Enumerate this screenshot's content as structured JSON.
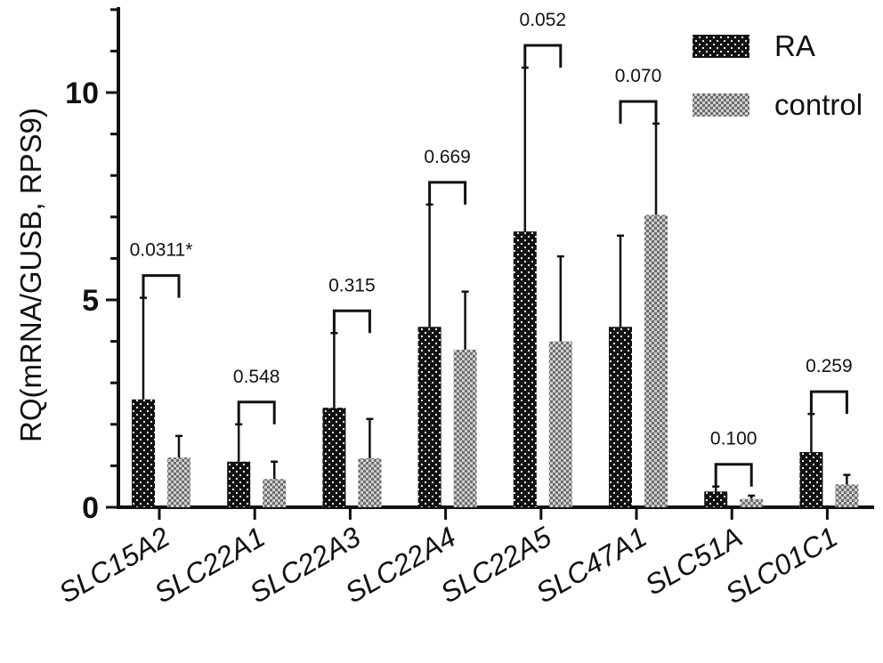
{
  "chart_data": {
    "type": "bar",
    "ylabel": "RQ(mRNA/GUSB, RPS9)",
    "ylim": [
      0,
      12
    ],
    "yticks": [
      0,
      5,
      10
    ],
    "categories": [
      "SLC15A2",
      "SLC22A1",
      "SLC22A3",
      "SLC22A4",
      "SLC22A5",
      "SLC47A1",
      "SLC51A",
      "SLC01C1"
    ],
    "series": [
      {
        "name": "RA",
        "values": [
          2.6,
          1.1,
          2.4,
          4.35,
          6.65,
          4.35,
          0.38,
          1.33
        ],
        "errors": [
          2.45,
          0.9,
          1.8,
          2.95,
          3.95,
          2.2,
          0.12,
          0.92
        ],
        "color": "#111111"
      },
      {
        "name": "control",
        "values": [
          1.2,
          0.68,
          1.18,
          3.8,
          4.0,
          7.05,
          0.2,
          0.55
        ],
        "errors": [
          0.52,
          0.42,
          0.95,
          1.4,
          2.05,
          2.2,
          0.08,
          0.23
        ],
        "color": "#8a8a8a"
      }
    ],
    "annotations": [
      "0.0311*",
      "0.548",
      "0.315",
      "0.669",
      "0.052",
      "0.070",
      "0.100",
      "0.259"
    ],
    "legend": "top-right"
  }
}
